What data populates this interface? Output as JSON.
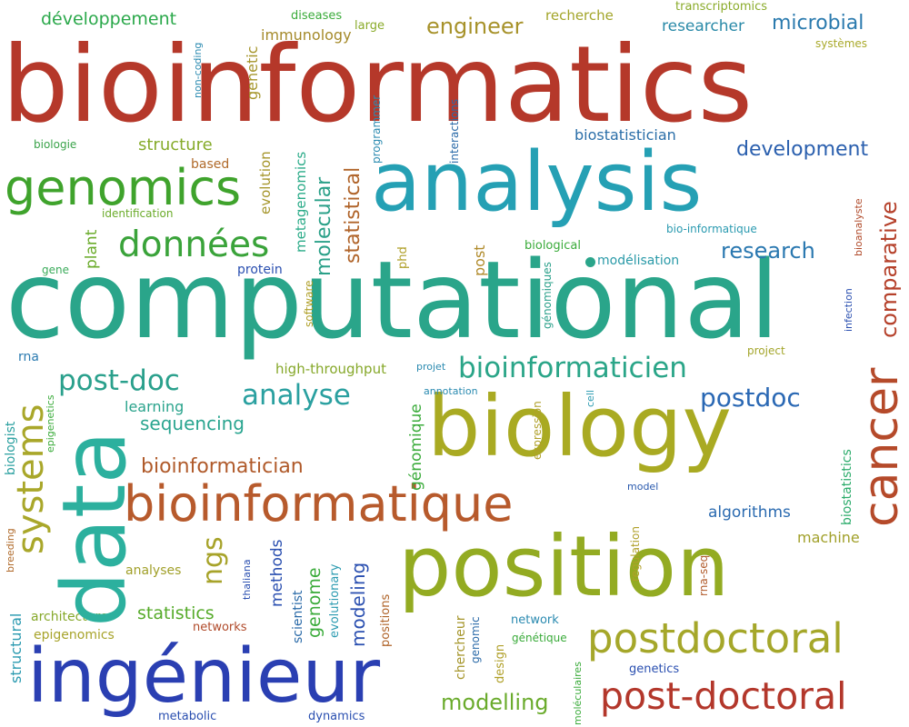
{
  "words": [
    {
      "text": "bioinformatics",
      "color": "#b5382a"
    },
    {
      "text": "computational",
      "color": "#2aa58a"
    },
    {
      "text": "analysis",
      "color": "#25a0b4"
    },
    {
      "text": "biology",
      "color": "#a9aa22"
    },
    {
      "text": "position",
      "color": "#93ab22"
    },
    {
      "text": "data",
      "color": "#2cb09e"
    },
    {
      "text": "ingénieur",
      "color": "#2a3fb2"
    },
    {
      "text": "genomics",
      "color": "#3fa32c"
    },
    {
      "text": "bioinformatique",
      "color": "#b75a2c"
    },
    {
      "text": "postdoctoral",
      "color": "#a5a72a"
    },
    {
      "text": "post-doctoral",
      "color": "#b3372b"
    },
    {
      "text": "cancer",
      "color": "#b54a2a"
    },
    {
      "text": "données",
      "color": "#3aa33a"
    },
    {
      "text": "systems",
      "color": "#a9a72a"
    },
    {
      "text": "bioinformaticien",
      "color": "#2aa588"
    },
    {
      "text": "post-doc",
      "color": "#2aa08c"
    },
    {
      "text": "analyse",
      "color": "#2aa0a0"
    },
    {
      "text": "postdoc",
      "color": "#2a68b4"
    },
    {
      "text": "comparative",
      "color": "#b5402a"
    },
    {
      "text": "research",
      "color": "#2a78b0"
    },
    {
      "text": "development",
      "color": "#2a5fae"
    },
    {
      "text": "engineer",
      "color": "#a7922a"
    },
    {
      "text": "microbial",
      "color": "#2a7aae"
    },
    {
      "text": "modelling",
      "color": "#6aab2c"
    },
    {
      "text": "bioinformatician",
      "color": "#b05a2a"
    },
    {
      "text": "structure",
      "color": "#86ab2a"
    },
    {
      "text": "sequencing",
      "color": "#2aa590"
    },
    {
      "text": "statistics",
      "color": "#56ab2a"
    },
    {
      "text": "algorithms",
      "color": "#2a6ab0"
    },
    {
      "text": "machine",
      "color": "#a1a02a"
    },
    {
      "text": "ngs",
      "color": "#a7a32a"
    },
    {
      "text": "learning",
      "color": "#2aa38c"
    },
    {
      "text": "développement",
      "color": "#2aa84a"
    },
    {
      "text": "recherche",
      "color": "#a3a52a"
    },
    {
      "text": "researcher",
      "color": "#2a8aa8"
    },
    {
      "text": "immunology",
      "color": "#a58a2a"
    },
    {
      "text": "biostatistician",
      "color": "#2a6ea8"
    },
    {
      "text": "high-throughput",
      "color": "#86a82a"
    },
    {
      "text": "protein",
      "color": "#2a4fb0"
    },
    {
      "text": "modélisation",
      "color": "#2a9aa8"
    },
    {
      "text": "biological",
      "color": "#3aab3a"
    },
    {
      "text": "identification",
      "color": "#6aab2a"
    },
    {
      "text": "based",
      "color": "#b06a2a"
    },
    {
      "text": "biologie",
      "color": "#3aa34a"
    },
    {
      "text": "diseases",
      "color": "#3aab3a"
    },
    {
      "text": "large",
      "color": "#8aab2a"
    },
    {
      "text": "transcriptomics",
      "color": "#8aab2a"
    },
    {
      "text": "systèmes",
      "color": "#a9a92a"
    },
    {
      "text": "bio-informatique",
      "color": "#2a9ab0"
    },
    {
      "text": "gene",
      "color": "#3aab5a"
    },
    {
      "text": "rna",
      "color": "#2a7ab0"
    },
    {
      "text": "project",
      "color": "#a3a52a"
    },
    {
      "text": "projet",
      "color": "#2a8ab0"
    },
    {
      "text": "annotation",
      "color": "#2a8ab0"
    },
    {
      "text": "architecture",
      "color": "#86a82a"
    },
    {
      "text": "epigenomics",
      "color": "#a7a32a"
    },
    {
      "text": "networks",
      "color": "#b04a2a"
    },
    {
      "text": "analyses",
      "color": "#a1a02a"
    },
    {
      "text": "network",
      "color": "#2a8ab0"
    },
    {
      "text": "génétique",
      "color": "#3aab3a"
    },
    {
      "text": "genetics",
      "color": "#2a4fb0"
    },
    {
      "text": "metabolic",
      "color": "#2a4fb0"
    },
    {
      "text": "dynamics",
      "color": "#2a4fb0"
    },
    {
      "text": "model",
      "color": "#2a5aae"
    },
    {
      "text": "genetic",
      "color": "#a5952a"
    },
    {
      "text": "non-coding",
      "color": "#2a8ab0"
    },
    {
      "text": "evolution",
      "color": "#a5952a"
    },
    {
      "text": "metagenomics",
      "color": "#2aab88"
    },
    {
      "text": "molecular",
      "color": "#2aa088"
    },
    {
      "text": "statistical",
      "color": "#b0642a"
    },
    {
      "text": "programmer",
      "color": "#2a8ab0"
    },
    {
      "text": "interactions",
      "color": "#2a6aa8"
    },
    {
      "text": "plant",
      "color": "#6aab2a"
    },
    {
      "text": "software",
      "color": "#b0a02a"
    },
    {
      "text": "phd",
      "color": "#b0a02a"
    },
    {
      "text": "post",
      "color": "#b08a2a"
    },
    {
      "text": "génomiques",
      "color": "#2aa08a"
    },
    {
      "text": "génomique",
      "color": "#3aab3a"
    },
    {
      "text": "expression",
      "color": "#b0a02a"
    },
    {
      "text": "cell",
      "color": "#2a9ab0"
    },
    {
      "text": "biostatistics",
      "color": "#2aab6a"
    },
    {
      "text": "bioanalyste",
      "color": "#b04a2a"
    },
    {
      "text": "infection",
      "color": "#2a4fb0"
    },
    {
      "text": "biologist",
      "color": "#2aa0a0"
    },
    {
      "text": "epigenetics",
      "color": "#3aab3a"
    },
    {
      "text": "breeding",
      "color": "#b06a2a"
    },
    {
      "text": "structural",
      "color": "#2a9ab0"
    },
    {
      "text": "thaliana",
      "color": "#2a4fb0"
    },
    {
      "text": "methods",
      "color": "#2a4fb0"
    },
    {
      "text": "scientist",
      "color": "#2a6aa8"
    },
    {
      "text": "genome",
      "color": "#3aab3a"
    },
    {
      "text": "evolutionary",
      "color": "#2a9ab0"
    },
    {
      "text": "modeling",
      "color": "#2a4fb0"
    },
    {
      "text": "positions",
      "color": "#b0642a"
    },
    {
      "text": "chercheur",
      "color": "#a5952a"
    },
    {
      "text": "genomic",
      "color": "#2a6aa8"
    },
    {
      "text": "design",
      "color": "#b0a02a"
    },
    {
      "text": "regulation",
      "color": "#b0a02a"
    },
    {
      "text": "rna-seq",
      "color": "#b05a2a"
    },
    {
      "text": "moléculaires",
      "color": "#3aab3a"
    }
  ]
}
